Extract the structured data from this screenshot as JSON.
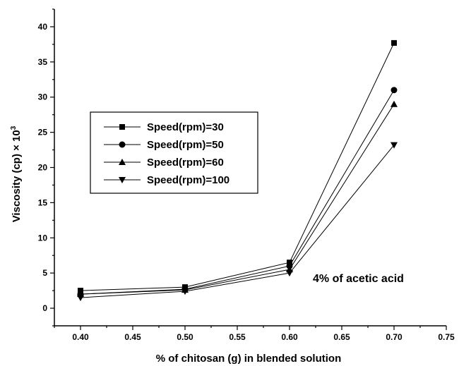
{
  "chart_data": {
    "type": "line",
    "x": [
      0.4,
      0.5,
      0.6,
      0.7
    ],
    "series": [
      {
        "name": "Speed(rpm)=30",
        "marker": "square",
        "values": [
          2.5,
          3.0,
          6.5,
          37.7
        ]
      },
      {
        "name": "Speed(rpm)=50",
        "marker": "circle",
        "values": [
          2.0,
          2.7,
          6.0,
          31.0
        ]
      },
      {
        "name": "Speed(rpm)=60",
        "marker": "triangle-up",
        "values": [
          2.0,
          2.6,
          5.5,
          29.0
        ]
      },
      {
        "name": "Speed(rpm)=100",
        "marker": "triangle-down",
        "values": [
          1.5,
          2.4,
          5.0,
          23.2
        ]
      }
    ],
    "xlabel": "% of chitosan (g) in blended solution",
    "ylabel_main": "Viscosity (cp) × 10",
    "ylabel_sup": "3",
    "xlim": [
      0.375,
      0.75
    ],
    "ylim": [
      -2.5,
      42.5
    ],
    "xticks": [
      "0.40",
      "0.45",
      "0.50",
      "0.55",
      "0.60",
      "0.65",
      "0.70",
      "0.75"
    ],
    "yticks": [
      "0",
      "5",
      "10",
      "15",
      "20",
      "25",
      "30",
      "35",
      "40"
    ],
    "annotation": "4% of acetic acid",
    "legend_position": "middle-left",
    "grid": false,
    "colors": {
      "line": "#000000",
      "marker": "#000000",
      "axis": "#000000"
    }
  }
}
